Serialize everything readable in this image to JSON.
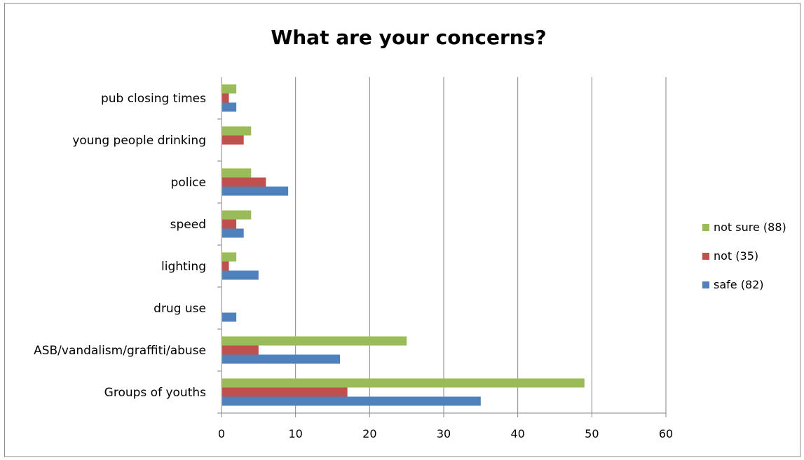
{
  "chart_data": {
    "type": "bar",
    "orientation": "horizontal",
    "title": "What are your concerns?",
    "categories": [
      "Groups of youths",
      "ASB/vandalism/graffiti/abuse",
      "drug use",
      "lighting",
      "speed",
      "police",
      "young people drinking",
      "pub closing times"
    ],
    "series": [
      {
        "name": "safe (82)",
        "color": "#4f81bd",
        "values": [
          35,
          16,
          2,
          5,
          3,
          9,
          0,
          2
        ]
      },
      {
        "name": "not (35)",
        "color": "#c0504d",
        "values": [
          17,
          5,
          0,
          1,
          2,
          6,
          3,
          1
        ]
      },
      {
        "name": "not sure (88)",
        "color": "#9bbb59",
        "values": [
          49,
          25,
          0,
          2,
          4,
          4,
          4,
          2
        ]
      }
    ],
    "xlim": [
      0,
      60
    ],
    "xticks": [
      0,
      10,
      20,
      30,
      40,
      50,
      60
    ],
    "grid": "vertical major gridlines",
    "legend": "right"
  }
}
